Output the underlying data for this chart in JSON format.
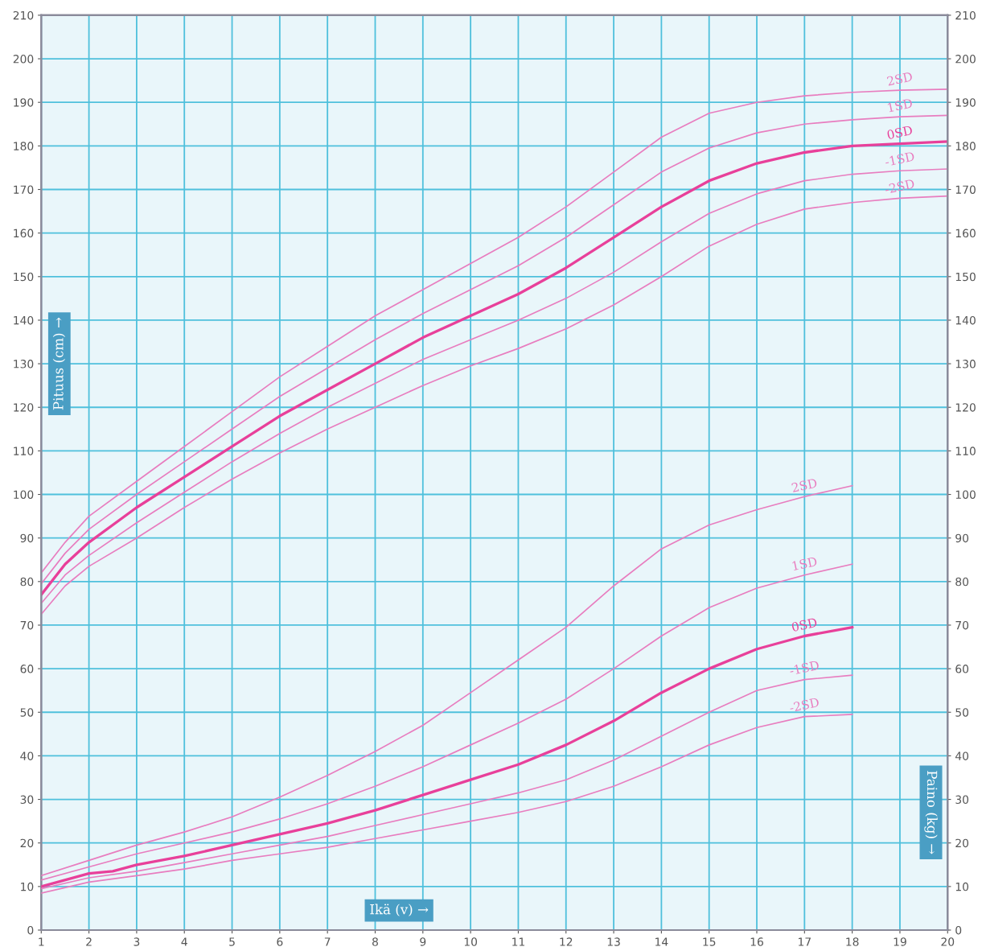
{
  "chart_data": {
    "type": "line",
    "xlabel": "Ikä (v) →",
    "ylabel": "Pituus (cm) →",
    "y2label": "Paino (kg) →",
    "xlim": [
      1,
      20
    ],
    "xticks": [
      1,
      2,
      3,
      4,
      5,
      6,
      7,
      8,
      9,
      10,
      11,
      12,
      13,
      14,
      15,
      16,
      17,
      18,
      19,
      20
    ],
    "ylim": [
      0,
      210
    ],
    "yticks": [
      0,
      10,
      20,
      30,
      40,
      50,
      60,
      70,
      80,
      90,
      100,
      110,
      120,
      130,
      140,
      150,
      160,
      170,
      180,
      190,
      200,
      210
    ],
    "y2lim": [
      0,
      210
    ],
    "y2ticks": [
      0,
      10,
      20,
      30,
      40,
      50,
      60,
      70,
      80,
      90,
      100,
      110,
      120,
      130,
      140,
      150,
      160,
      170,
      180,
      190,
      200,
      210
    ],
    "grid": true,
    "legend": false,
    "marker": "none",
    "line_style": "solid",
    "series": [
      {
        "name": "2SD",
        "color": "#e87dbf",
        "x": [
          1,
          1.5,
          2,
          3,
          4,
          5,
          6,
          7,
          8,
          9,
          10,
          11,
          12,
          13,
          14,
          15,
          16,
          17,
          18,
          19,
          20
        ],
        "values": [
          82,
          89,
          95,
          103,
          111,
          119,
          127,
          134,
          141,
          147,
          153,
          159,
          166,
          174,
          182,
          187.5,
          190,
          191.5,
          192.3,
          192.8,
          193
        ]
      },
      {
        "name": "1SD",
        "color": "#e87dbf",
        "x": [
          1,
          1.5,
          2,
          3,
          4,
          5,
          6,
          7,
          8,
          9,
          10,
          11,
          12,
          13,
          14,
          15,
          16,
          17,
          18,
          19,
          20
        ],
        "values": [
          79.5,
          86.5,
          92,
          100,
          107.5,
          115,
          122.5,
          129,
          135.5,
          141.5,
          147,
          152.5,
          159,
          166.5,
          174,
          179.5,
          183,
          185,
          186,
          186.7,
          187
        ]
      },
      {
        "name": "0SD",
        "color": "#e8409a",
        "x": [
          1,
          1.5,
          2,
          3,
          4,
          5,
          6,
          7,
          8,
          9,
          10,
          11,
          12,
          13,
          14,
          15,
          16,
          17,
          18,
          19,
          20
        ],
        "values": [
          77,
          84,
          89,
          97,
          104,
          111,
          118,
          124,
          130,
          136,
          141,
          146,
          152,
          159,
          166,
          172,
          176,
          178.5,
          180,
          180.5,
          181
        ]
      },
      {
        "name": "-1SD",
        "color": "#e87dbf",
        "x": [
          1,
          1.5,
          2,
          3,
          4,
          5,
          6,
          7,
          8,
          9,
          10,
          11,
          12,
          13,
          14,
          15,
          16,
          17,
          18,
          19,
          20
        ],
        "values": [
          75,
          81.5,
          86,
          93.5,
          100.5,
          107.5,
          114,
          120,
          125.5,
          131,
          135.5,
          140,
          145,
          151,
          158,
          164.5,
          169,
          172,
          173.5,
          174.3,
          174.7
        ]
      },
      {
        "name": "-2SD",
        "color": "#e87dbf",
        "x": [
          1,
          1.5,
          2,
          3,
          4,
          5,
          6,
          7,
          8,
          9,
          10,
          11,
          12,
          13,
          14,
          15,
          16,
          17,
          18,
          19,
          20
        ],
        "values": [
          72.5,
          79,
          83.5,
          90,
          97,
          103.5,
          109.5,
          115,
          120,
          125,
          129.5,
          133.5,
          138,
          143.5,
          150,
          157,
          162,
          165.5,
          167,
          168,
          168.5
        ]
      },
      {
        "name": "2SD",
        "color": "#e87dbf",
        "axis": "y2",
        "x": [
          1,
          2,
          3,
          4,
          5,
          6,
          7,
          8,
          9,
          10,
          11,
          12,
          13,
          14,
          15,
          16,
          17,
          18
        ],
        "values": [
          12.5,
          16,
          19.5,
          22.5,
          26,
          30.5,
          35.5,
          41,
          47,
          54.5,
          62,
          69.5,
          79,
          87.5,
          93,
          96.5,
          99.5,
          102
        ]
      },
      {
        "name": "1SD",
        "color": "#e87dbf",
        "axis": "y2",
        "x": [
          1,
          2,
          3,
          4,
          5,
          6,
          7,
          8,
          9,
          10,
          11,
          12,
          13,
          14,
          15,
          16,
          17,
          18
        ],
        "values": [
          11.5,
          14.5,
          17.5,
          20,
          22.5,
          25.5,
          29,
          33,
          37.5,
          42.5,
          47.5,
          53,
          60,
          67.5,
          74,
          78.5,
          81.5,
          84
        ]
      },
      {
        "name": "0SD",
        "color": "#e8409a",
        "axis": "y2",
        "x": [
          1,
          2,
          2.5,
          3,
          4,
          5,
          6,
          7,
          8,
          9,
          10,
          11,
          12,
          13,
          14,
          15,
          16,
          17,
          18
        ],
        "values": [
          10,
          13,
          13.5,
          15,
          17,
          19.5,
          22,
          24.5,
          27.5,
          31,
          34.5,
          38,
          42.5,
          48,
          54.5,
          60,
          64.5,
          67.5,
          69.5
        ]
      },
      {
        "name": "-1SD",
        "color": "#e87dbf",
        "axis": "y2",
        "x": [
          1,
          2,
          3,
          4,
          5,
          6,
          7,
          8,
          9,
          10,
          11,
          12,
          13,
          14,
          15,
          16,
          17,
          18
        ],
        "values": [
          9.5,
          12,
          13.5,
          15.5,
          17.5,
          19.5,
          21.5,
          24,
          26.5,
          29,
          31.5,
          34.5,
          39,
          44.5,
          50,
          55,
          57.5,
          58.5
        ]
      },
      {
        "name": "-2SD",
        "color": "#e87dbf",
        "axis": "y2",
        "x": [
          1,
          2,
          3,
          4,
          5,
          6,
          7,
          8,
          9,
          10,
          11,
          12,
          13,
          14,
          15,
          16,
          17,
          18
        ],
        "values": [
          8.5,
          11,
          12.5,
          14,
          16,
          17.5,
          19,
          21,
          23,
          25,
          27,
          29.5,
          33,
          37.5,
          42.5,
          46.5,
          49,
          49.5
        ]
      }
    ]
  }
}
